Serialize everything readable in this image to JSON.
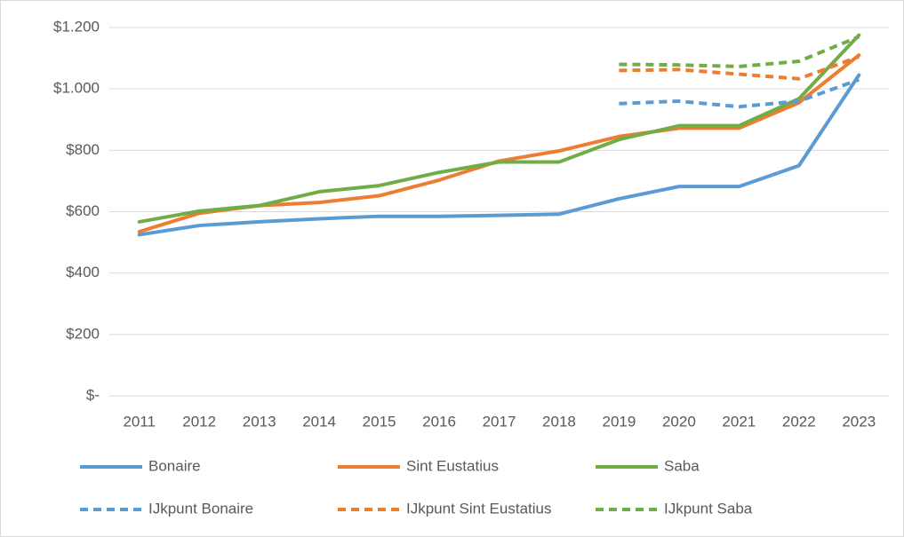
{
  "chart_data": {
    "type": "line",
    "categories": [
      "2011",
      "2012",
      "2013",
      "2014",
      "2015",
      "2016",
      "2017",
      "2018",
      "2019",
      "2020",
      "2021",
      "2022",
      "2023"
    ],
    "series": [
      {
        "name": "Bonaire",
        "color": "#5b9bd5",
        "dashed": false,
        "values": [
          525,
          555,
          567,
          577,
          585,
          585,
          588,
          592,
          642,
          682,
          682,
          750,
          1045
        ]
      },
      {
        "name": "Sint Eustatius",
        "color": "#ed7d31",
        "dashed": false,
        "values": [
          535,
          595,
          620,
          630,
          652,
          703,
          765,
          798,
          845,
          872,
          872,
          955,
          1110
        ]
      },
      {
        "name": "Saba",
        "color": "#70ad47",
        "dashed": false,
        "values": [
          567,
          602,
          620,
          665,
          685,
          728,
          762,
          762,
          835,
          880,
          880,
          968,
          1175
        ]
      },
      {
        "name": "IJkpunt Bonaire",
        "color": "#5b9bd5",
        "dashed": true,
        "values": [
          null,
          null,
          null,
          null,
          null,
          null,
          null,
          null,
          952,
          960,
          942,
          960,
          1030
        ]
      },
      {
        "name": "IJkpunt Sint Eustatius",
        "color": "#ed7d31",
        "dashed": true,
        "values": [
          null,
          null,
          null,
          null,
          null,
          null,
          null,
          null,
          1060,
          1063,
          1048,
          1033,
          1105
        ]
      },
      {
        "name": "IJkpunt Saba",
        "color": "#70ad47",
        "dashed": true,
        "values": [
          null,
          null,
          null,
          null,
          null,
          null,
          null,
          null,
          1080,
          1078,
          1073,
          1090,
          1170
        ]
      }
    ],
    "ylim": [
      0,
      1200
    ],
    "yticks": [
      {
        "value": 0,
        "label": "$-"
      },
      {
        "value": 200,
        "label": "$200"
      },
      {
        "value": 400,
        "label": "$400"
      },
      {
        "value": 600,
        "label": "$600"
      },
      {
        "value": 800,
        "label": "$800"
      },
      {
        "value": 1000,
        "label": "$1.000"
      },
      {
        "value": 1200,
        "label": "$1.200"
      }
    ],
    "grid": true,
    "legend": "bottom"
  }
}
